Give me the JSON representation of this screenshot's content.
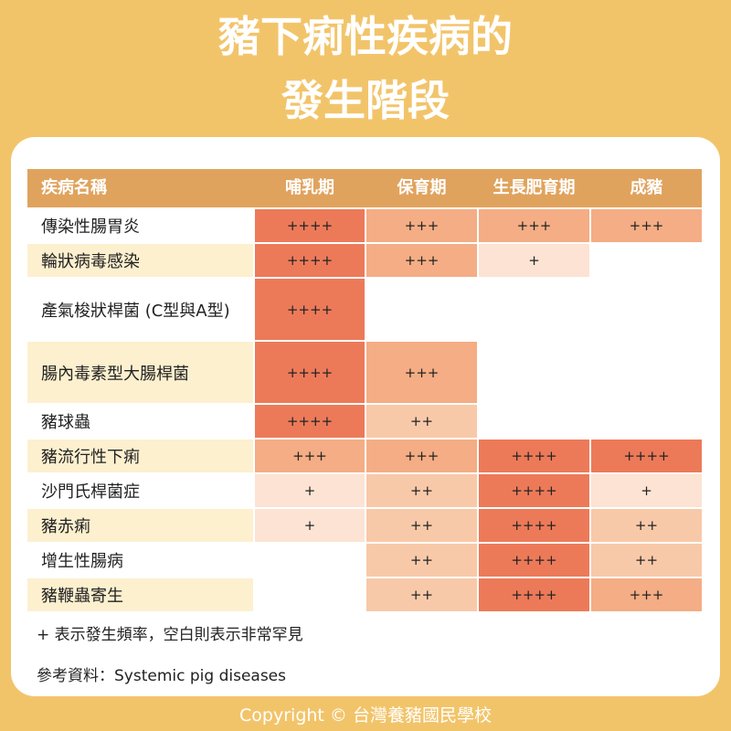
{
  "title": {
    "line1": "豬下痢性疾病的",
    "line2": "發生階段"
  },
  "table": {
    "headers": [
      "疾病名稱",
      "哺乳期",
      "保育期",
      "生長肥育期",
      "成豬"
    ],
    "rows": [
      {
        "name": "傳染性腸胃炎",
        "cells": [
          "++++",
          "+++",
          "+++",
          "+++"
        ]
      },
      {
        "name": "輪狀病毒感染",
        "cells": [
          "++++",
          "+++",
          "+",
          ""
        ]
      },
      {
        "name": "產氣梭狀桿菌 (C型與A型)",
        "cells": [
          "++++",
          "",
          "",
          ""
        ]
      },
      {
        "name": "腸內毒素型大腸桿菌",
        "cells": [
          "++++",
          "+++",
          "",
          ""
        ]
      },
      {
        "name": "豬球蟲",
        "cells": [
          "++++",
          "++",
          "",
          ""
        ]
      },
      {
        "name": "豬流行性下痢",
        "cells": [
          "+++",
          "+++",
          "++++",
          "++++"
        ]
      },
      {
        "name": "沙門氏桿菌症",
        "cells": [
          "+",
          "++",
          "++++",
          "+"
        ]
      },
      {
        "name": "豬赤痢",
        "cells": [
          "+",
          "++",
          "++++",
          "++"
        ]
      },
      {
        "name": "增生性腸病",
        "cells": [
          "",
          "++",
          "++++",
          "++"
        ]
      },
      {
        "name": "豬鞭蟲寄生",
        "cells": [
          "",
          "++",
          "++++",
          "+++"
        ]
      }
    ]
  },
  "legend_note": "+ 表示發生頻率，空白則表示非常罕見",
  "reference": "參考資料：Systemic pig diseases",
  "footer": "Copyright © 台灣養豬國民學校",
  "colors": {
    "background": "#f2c46a",
    "header": "#e0a35e",
    "level_4": "#ec7a59",
    "level_3": "#f4ad84",
    "level_2": "#f8c9a9",
    "level_1": "#fce3d4",
    "name_highlight": "#fdf0cf"
  }
}
